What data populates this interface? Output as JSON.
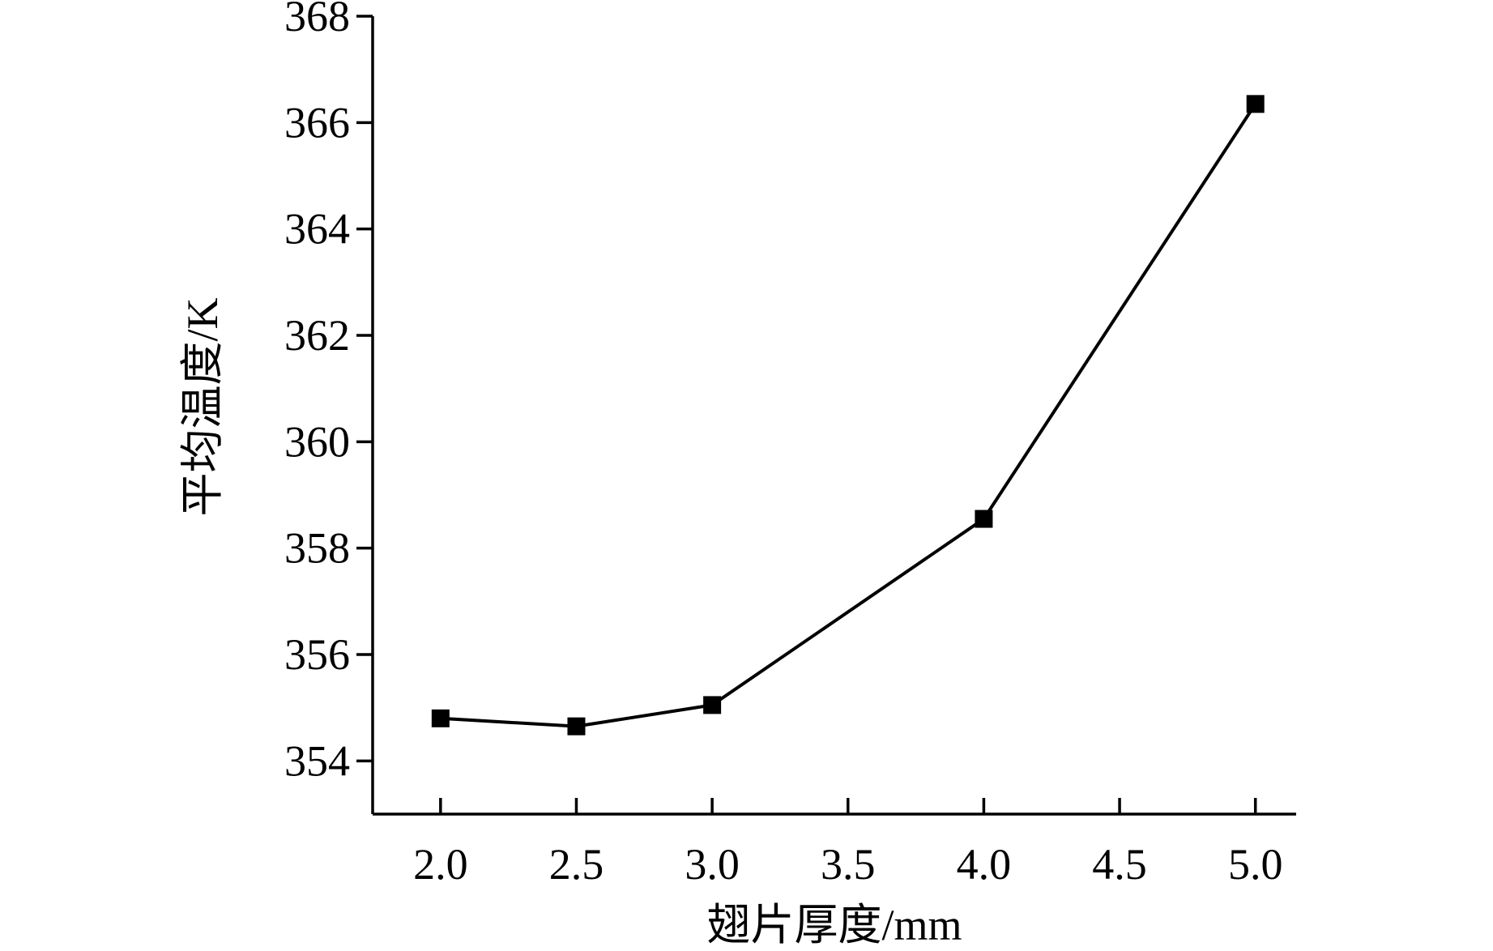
{
  "chart_data": {
    "type": "line",
    "xlabel": "翅片厚度/mm",
    "ylabel": "平均温度/K",
    "xlim": [
      1.75,
      5.15
    ],
    "ylim": [
      353,
      368
    ],
    "x_ticks": [
      "2.0",
      "2.5",
      "3.0",
      "3.5",
      "4.0",
      "4.5",
      "5.0"
    ],
    "y_ticks": [
      "354",
      "356",
      "358",
      "360",
      "362",
      "364",
      "366",
      "368"
    ],
    "grid": false,
    "marker": "square",
    "colors": {
      "line": "#000000",
      "marker": "#000000"
    },
    "series": [
      {
        "x": [
          2.0,
          2.5,
          3.0,
          4.0,
          5.0
        ],
        "y": [
          354.8,
          354.65,
          355.05,
          358.55,
          366.35
        ]
      }
    ]
  }
}
